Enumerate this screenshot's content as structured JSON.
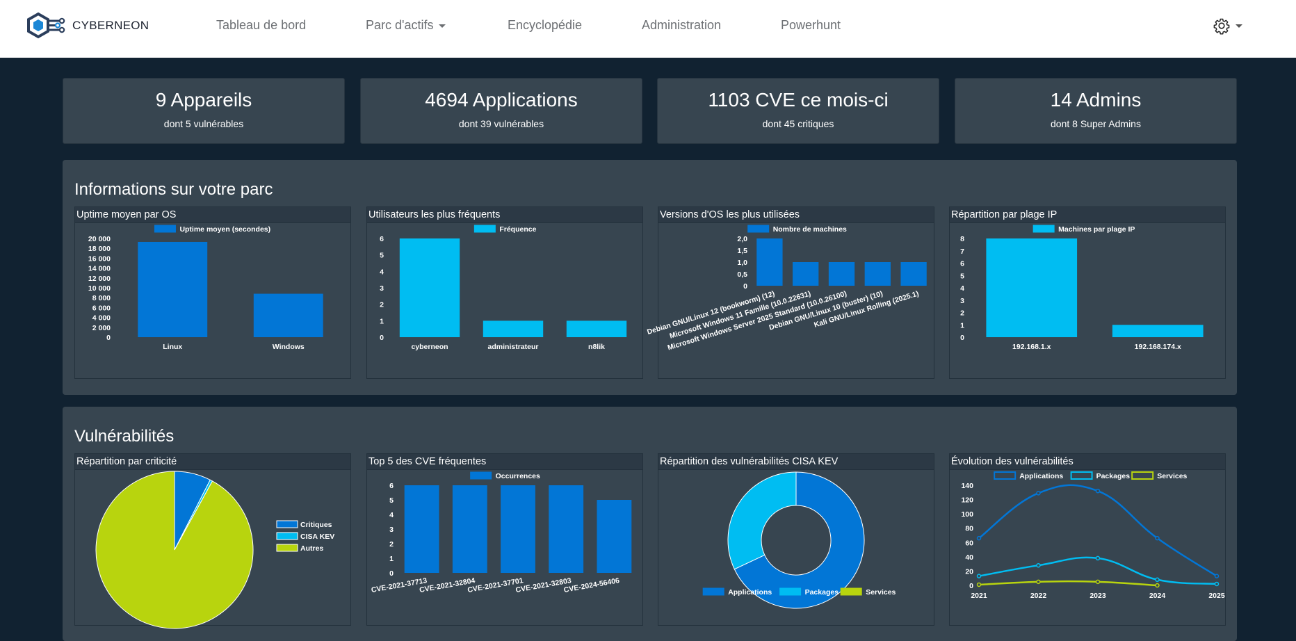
{
  "navbar": {
    "brand": "CYBERNEON",
    "items": [
      {
        "label": "Tableau de bord"
      },
      {
        "label": "Parc d'actifs"
      },
      {
        "label": "Encyclopédie"
      },
      {
        "label": "Administration"
      },
      {
        "label": "Powerhunt"
      }
    ],
    "settings_icon": "gear-icon"
  },
  "stats": [
    {
      "title": "9 Appareils",
      "subtitle": "dont 5 vulnérables"
    },
    {
      "title": "4694 Applications",
      "subtitle": "dont 39 vulnérables"
    },
    {
      "title": "1103 CVE ce mois-ci",
      "subtitle": "dont 45 critiques"
    },
    {
      "title": "14 Admins",
      "subtitle": "dont 8 Super Admins"
    }
  ],
  "sections": {
    "parc_title": "Informations sur votre parc",
    "vuln_title": "Vulnérabilités"
  },
  "colors": {
    "blue": "#0276d6",
    "cyan": "#00bdf2",
    "lime": "#b8d40e",
    "panel": "#374550",
    "background": "#112231"
  },
  "chart_data": [
    {
      "id": "uptime",
      "type": "bar",
      "title": "Uptime moyen par OS",
      "categories": [
        "Linux",
        "Windows"
      ],
      "series": [
        {
          "name": "Uptime moyen (secondes)",
          "values": [
            19300,
            8800
          ],
          "color": "#0276d6"
        }
      ],
      "ylim": [
        0,
        20000
      ],
      "yticks": [
        "0",
        "2 000",
        "4 000",
        "6 000",
        "8 000",
        "10 000",
        "12 000",
        "14 000",
        "16 000",
        "18 000",
        "20 000"
      ],
      "grid": false,
      "legend": "top-center"
    },
    {
      "id": "users",
      "type": "bar",
      "title": "Utilisateurs les plus fréquents",
      "categories": [
        "cyberneon",
        "administrateur",
        "n8lik"
      ],
      "series": [
        {
          "name": "Fréquence",
          "values": [
            6,
            1,
            1
          ],
          "color": "#00bdf2"
        }
      ],
      "ylim": [
        0,
        6
      ],
      "yticks": [
        "0",
        "1",
        "2",
        "3",
        "4",
        "5",
        "6"
      ],
      "grid": false,
      "legend": "top-center"
    },
    {
      "id": "osversions",
      "type": "bar",
      "title": "Versions d'OS les plus utilisées",
      "categories": [
        "Debian GNU/Linux 12 (bookworm) (12)",
        "Microsoft Windows 11 Famille (10.0.22631)",
        "Microsoft Windows Server 2025 Standard (10.0.26100)",
        "Debian GNU/Linux 10 (buster) (10)",
        "Kali GNU/Linux Rolling (2025.1)"
      ],
      "series": [
        {
          "name": "Nombre de machines",
          "values": [
            2,
            1,
            1,
            1,
            1
          ],
          "color": "#0276d6"
        }
      ],
      "ylim": [
        0,
        2
      ],
      "yticks": [
        "0",
        "0,5",
        "1,0",
        "1,5",
        "2,0"
      ],
      "grid": false,
      "legend": "top-center"
    },
    {
      "id": "iprange",
      "type": "bar",
      "title": "Répartition par plage IP",
      "categories": [
        "192.168.1.x",
        "192.168.174.x"
      ],
      "series": [
        {
          "name": "Machines par plage IP",
          "values": [
            8,
            1
          ],
          "color": "#00bdf2"
        }
      ],
      "ylim": [
        0,
        8
      ],
      "yticks": [
        "0",
        "1",
        "2",
        "3",
        "4",
        "5",
        "6",
        "7",
        "8"
      ],
      "grid": false,
      "legend": "top-center"
    },
    {
      "id": "criticity",
      "type": "pie",
      "title": "Répartition par criticité",
      "categories": [
        "Critiques",
        "CISA KEV",
        "Autres"
      ],
      "values": [
        7.5,
        0.5,
        92
      ],
      "colors": [
        "#0276d6",
        "#00bdf2",
        "#b8d40e"
      ],
      "legend": "right"
    },
    {
      "id": "topcve",
      "type": "bar",
      "title": "Top 5 des CVE fréquentes",
      "categories": [
        "CVE-2021-37713",
        "CVE-2021-32804",
        "CVE-2021-37701",
        "CVE-2021-32803",
        "CVE-2024-56406"
      ],
      "series": [
        {
          "name": "Occurrences",
          "values": [
            6,
            6,
            6,
            6,
            5
          ],
          "color": "#0276d6"
        }
      ],
      "ylim": [
        0,
        6
      ],
      "yticks": [
        "0",
        "1",
        "2",
        "3",
        "4",
        "5",
        "6"
      ],
      "grid": false,
      "legend": "top-center"
    },
    {
      "id": "cisakev",
      "type": "pie",
      "title": "Répartition des vulnérabilités CISA KEV",
      "categories": [
        "Applications",
        "Packages",
        "Services"
      ],
      "values": [
        68,
        32,
        0
      ],
      "colors": [
        "#0276d6",
        "#00bdf2",
        "#b8d40e"
      ],
      "donut": true,
      "legend": "bottom"
    },
    {
      "id": "evolution",
      "type": "line",
      "title": "Évolution des vulnérabilités",
      "x": [
        "2021",
        "2022",
        "2023",
        "2024",
        "2025"
      ],
      "series": [
        {
          "name": "Applications",
          "values": [
            66,
            129,
            132,
            66,
            13
          ],
          "color": "#0276d6"
        },
        {
          "name": "Packages",
          "values": [
            13,
            28,
            38,
            8,
            2
          ],
          "color": "#00bdf2"
        },
        {
          "name": "Services",
          "values": [
            1,
            5,
            5,
            0,
            null
          ],
          "color": "#b8d40e"
        }
      ],
      "ylim": [
        0,
        140
      ],
      "yticks": [
        "0",
        "20",
        "40",
        "60",
        "80",
        "100",
        "120",
        "140"
      ],
      "grid": false,
      "legend": "top-center"
    }
  ]
}
